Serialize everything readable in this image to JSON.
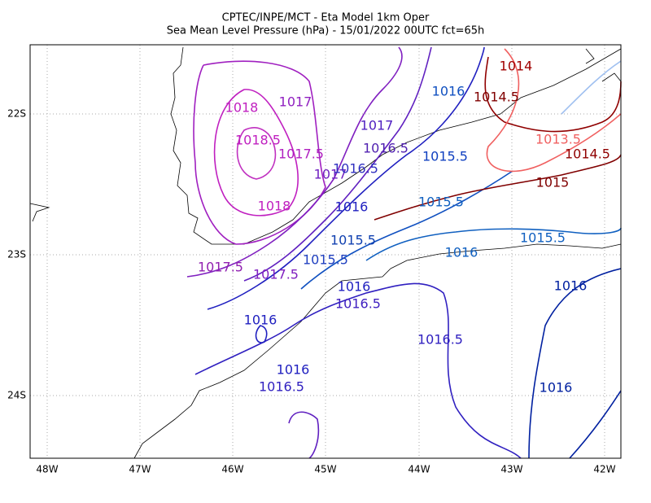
{
  "header": {
    "title": [
      "CPTEC/INPE/MCT -  Eta Model 1km Oper",
      "Sea Mean Level Pressure (hPa) - 15/01/2022 00UTC fct=65h"
    ]
  },
  "axes": {
    "x_labels": [
      "48W",
      "47W",
      "46W",
      "45W",
      "44W",
      "43W",
      "42W"
    ],
    "y_labels": [
      "22S",
      "23S",
      "24S"
    ]
  },
  "contour_labels": [
    "1018",
    "1017",
    "1018.5",
    "1017.5",
    "1017",
    "1018",
    "1017.5",
    "1017.5",
    "1016.5",
    "1017",
    "1016.5",
    "1016",
    "1016",
    "1014.5",
    "1014",
    "1015.5",
    "1015.5",
    "1013.5",
    "1014.5",
    "1015",
    "1015.5",
    "1015.5",
    "1016",
    "1015.5",
    "1016",
    "1016.5",
    "1016",
    "1016.5",
    "1016",
    "1016",
    "1016.5",
    "1016"
  ]
}
